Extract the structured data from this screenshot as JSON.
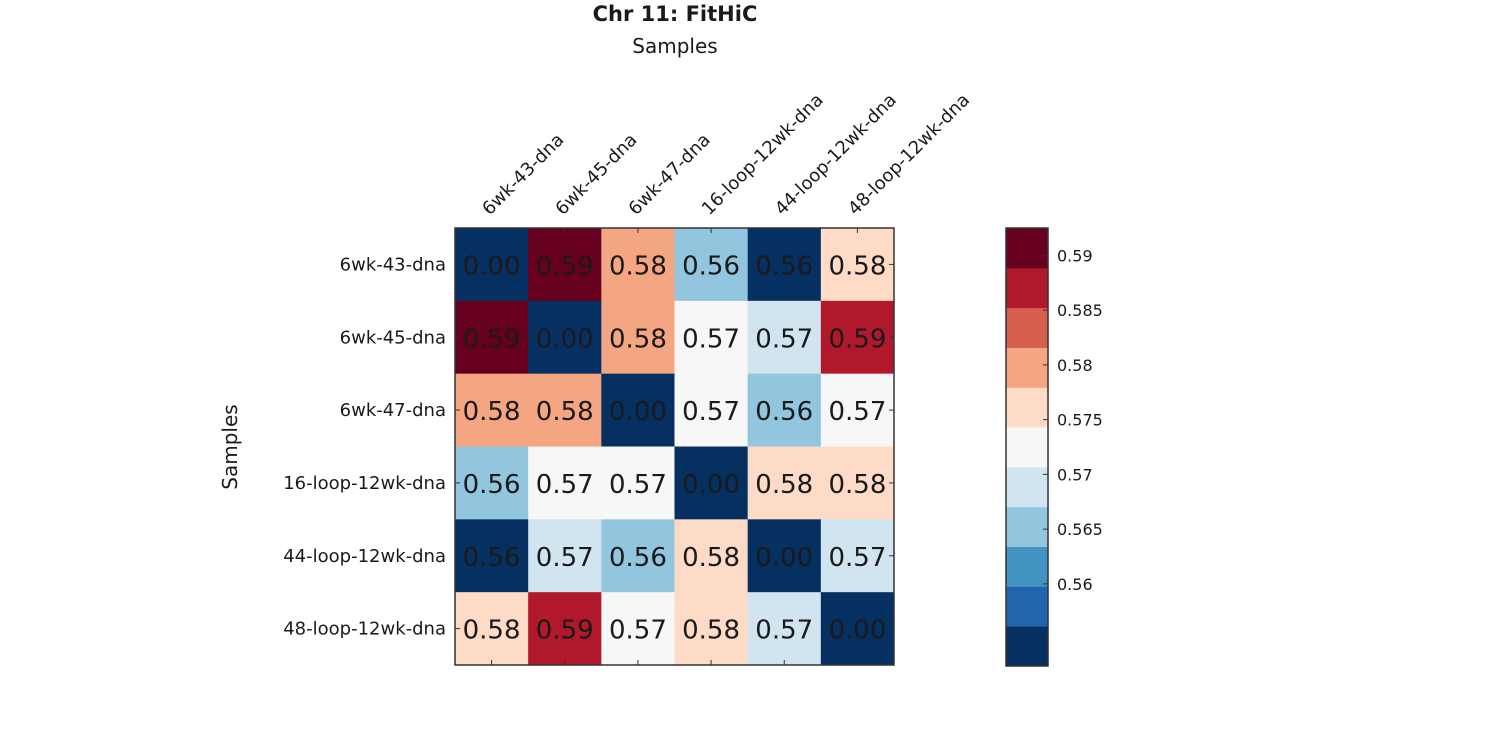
{
  "chart_data": {
    "type": "heatmap",
    "title": "Chr 11: FitHiC",
    "xlabel": "Samples",
    "ylabel": "Samples",
    "x_categories": [
      "6wk-43-dna",
      "6wk-45-dna",
      "6wk-47-dna",
      "16-loop-12wk-dna",
      "44-loop-12wk-dna",
      "48-loop-12wk-dna"
    ],
    "y_categories": [
      "6wk-43-dna",
      "6wk-45-dna",
      "6wk-47-dna",
      "16-loop-12wk-dna",
      "44-loop-12wk-dna",
      "48-loop-12wk-dna"
    ],
    "values": [
      [
        0.0,
        0.59,
        0.58,
        0.56,
        0.56,
        0.58
      ],
      [
        0.59,
        0.0,
        0.58,
        0.57,
        0.57,
        0.59
      ],
      [
        0.58,
        0.58,
        0.0,
        0.57,
        0.56,
        0.57
      ],
      [
        0.56,
        0.57,
        0.57,
        0.0,
        0.58,
        0.58
      ],
      [
        0.56,
        0.57,
        0.56,
        0.58,
        0.0,
        0.57
      ],
      [
        0.58,
        0.59,
        0.57,
        0.58,
        0.57,
        0.0
      ]
    ],
    "cell_labels": [
      [
        "0.00",
        "0.59",
        "0.58",
        "0.56",
        "0.56",
        "0.58"
      ],
      [
        "0.59",
        "0.00",
        "0.58",
        "0.57",
        "0.57",
        "0.59"
      ],
      [
        "0.58",
        "0.58",
        "0.00",
        "0.57",
        "0.56",
        "0.57"
      ],
      [
        "0.56",
        "0.57",
        "0.57",
        "0.00",
        "0.58",
        "0.58"
      ],
      [
        "0.56",
        "0.57",
        "0.56",
        "0.58",
        "0.00",
        "0.57"
      ],
      [
        "0.58",
        "0.59",
        "0.57",
        "0.58",
        "0.57",
        "0.00"
      ]
    ],
    "cell_color_index": [
      [
        0,
        10,
        7,
        3,
        0,
        6
      ],
      [
        10,
        0,
        7,
        5,
        4,
        9
      ],
      [
        7,
        7,
        0,
        5,
        3,
        5
      ],
      [
        3,
        5,
        5,
        0,
        6,
        6
      ],
      [
        0,
        4,
        3,
        6,
        0,
        4
      ],
      [
        6,
        9,
        5,
        6,
        4,
        0
      ]
    ],
    "colorbar": {
      "min": 0.5525,
      "max": 0.5925,
      "bins": 10,
      "colors": [
        "#053061",
        "#2166ac",
        "#4393c3",
        "#92c5de",
        "#d1e5f0",
        "#f7f7f7",
        "#fddbc7",
        "#f4a582",
        "#d6604d",
        "#b2182b",
        "#67001f"
      ],
      "ticks": [
        0.56,
        0.565,
        0.57,
        0.575,
        0.58,
        0.585,
        0.59
      ],
      "tick_labels": [
        "0.56",
        "0.565",
        "0.57",
        "0.575",
        "0.58",
        "0.585",
        "0.59"
      ]
    },
    "grid": false
  }
}
